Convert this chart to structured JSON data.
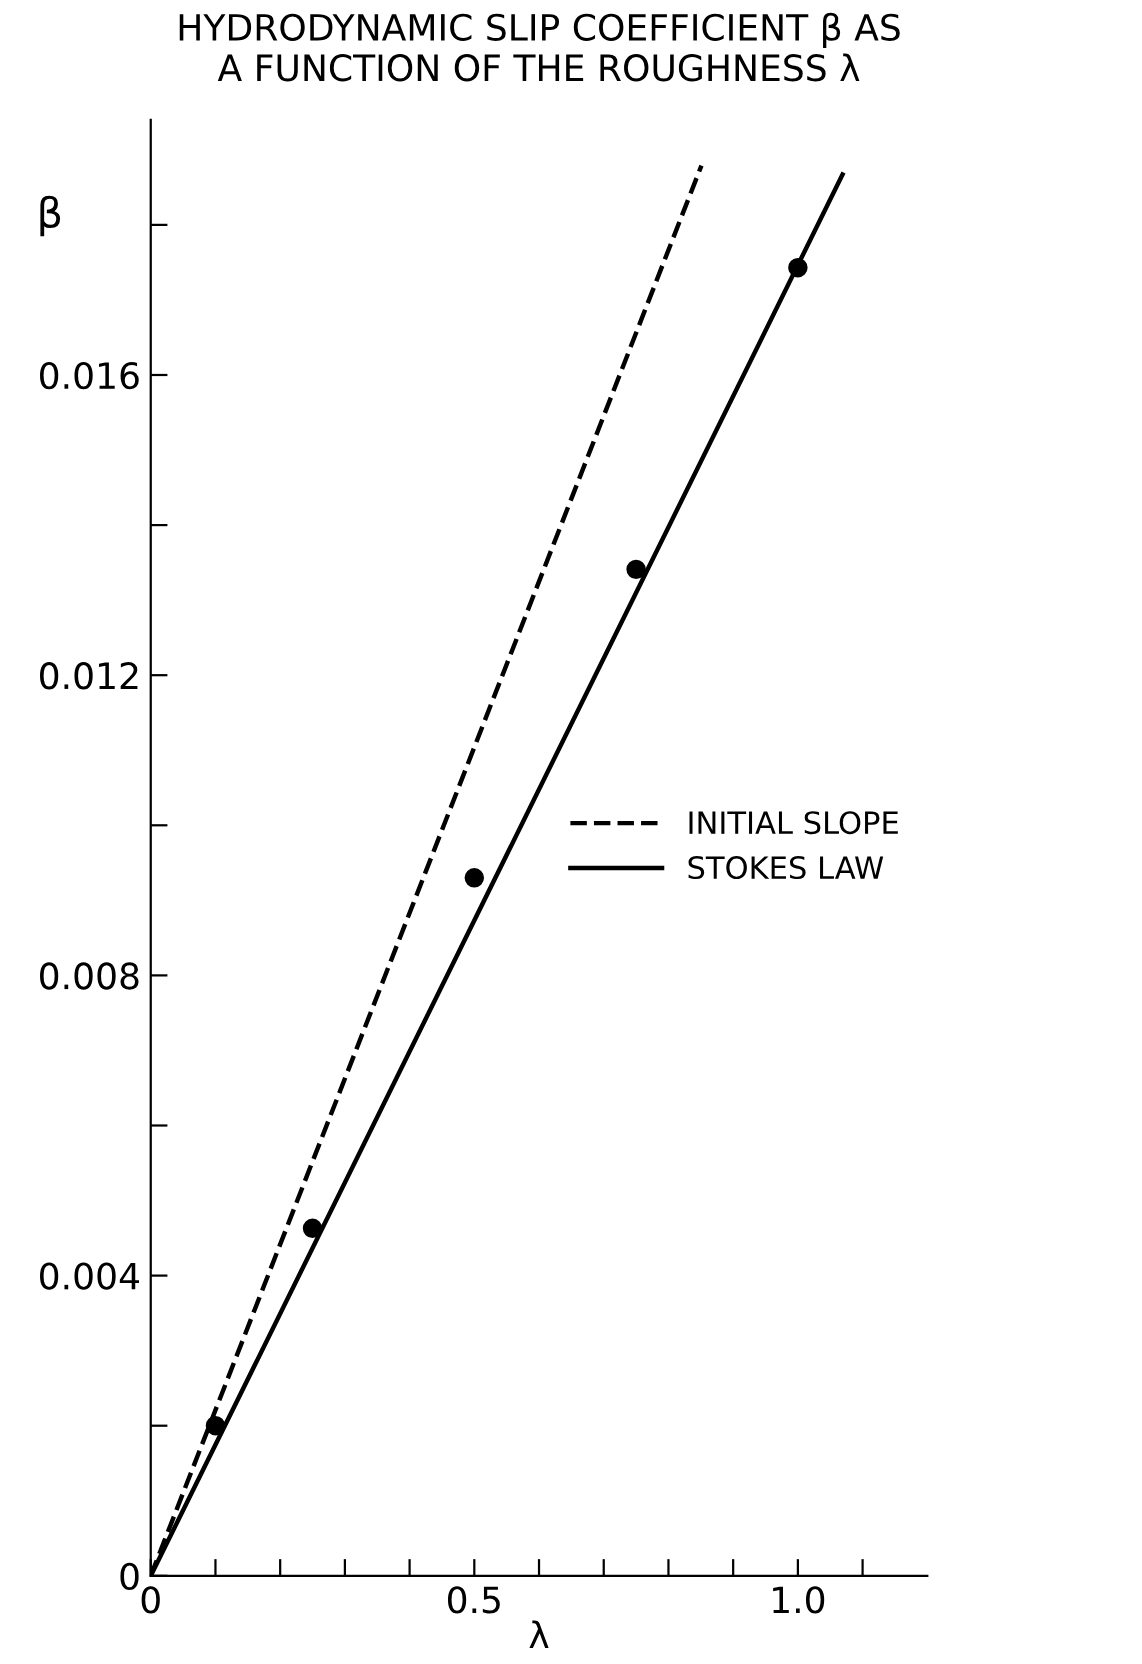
{
  "chart_data": {
    "type": "line",
    "title": "HYDRODYNAMIC SLIP COEFFICIENT β AS\nA FUNCTION OF THE ROUGHNESS λ",
    "xlabel": "λ",
    "ylabel": "β",
    "series": [
      {
        "name": "INITIAL SLOPE",
        "line_style": "dashed",
        "color": "#000000",
        "x": [
          0,
          0.851
        ],
        "values": [
          0,
          0.01879
        ]
      },
      {
        "name": "STOKES LAW",
        "line_style": "solid",
        "color": "#000000",
        "x": [
          0,
          1.069
        ],
        "values": [
          0,
          0.01867
        ]
      },
      {
        "type": "scatter",
        "marker": "circle",
        "color": "#000000",
        "x": [
          0.1,
          0.25,
          0.5,
          0.75,
          1.0
        ],
        "values": [
          0.002,
          0.00463,
          0.0093,
          0.01341,
          0.01743
        ]
      }
    ],
    "xlim": [
      0,
      1.2
    ],
    "ylim": [
      0,
      0.0194
    ],
    "xticks": [
      0,
      {
        "value": 0.1,
        "label": null
      },
      {
        "value": 0.2,
        "label": null
      },
      {
        "value": 0.3,
        "label": null
      },
      {
        "value": 0.4,
        "label": null
      },
      0.5,
      {
        "value": 0.6,
        "label": null
      },
      {
        "value": 0.7,
        "label": null
      },
      {
        "value": 0.8,
        "label": null
      },
      {
        "value": 0.9,
        "label": null
      },
      {
        "value": 1.0,
        "label": "1.0"
      },
      {
        "value": 1.1,
        "label": null
      }
    ],
    "yticks": [
      0,
      {
        "value": 0.002,
        "label": null
      },
      0.004,
      {
        "value": 0.006,
        "label": null
      },
      0.008,
      {
        "value": 0.01,
        "label": null
      },
      0.012,
      {
        "value": 0.014,
        "label": null
      },
      0.016,
      {
        "value": 0.018,
        "label": null
      }
    ],
    "grid": false,
    "legend": "center right"
  }
}
